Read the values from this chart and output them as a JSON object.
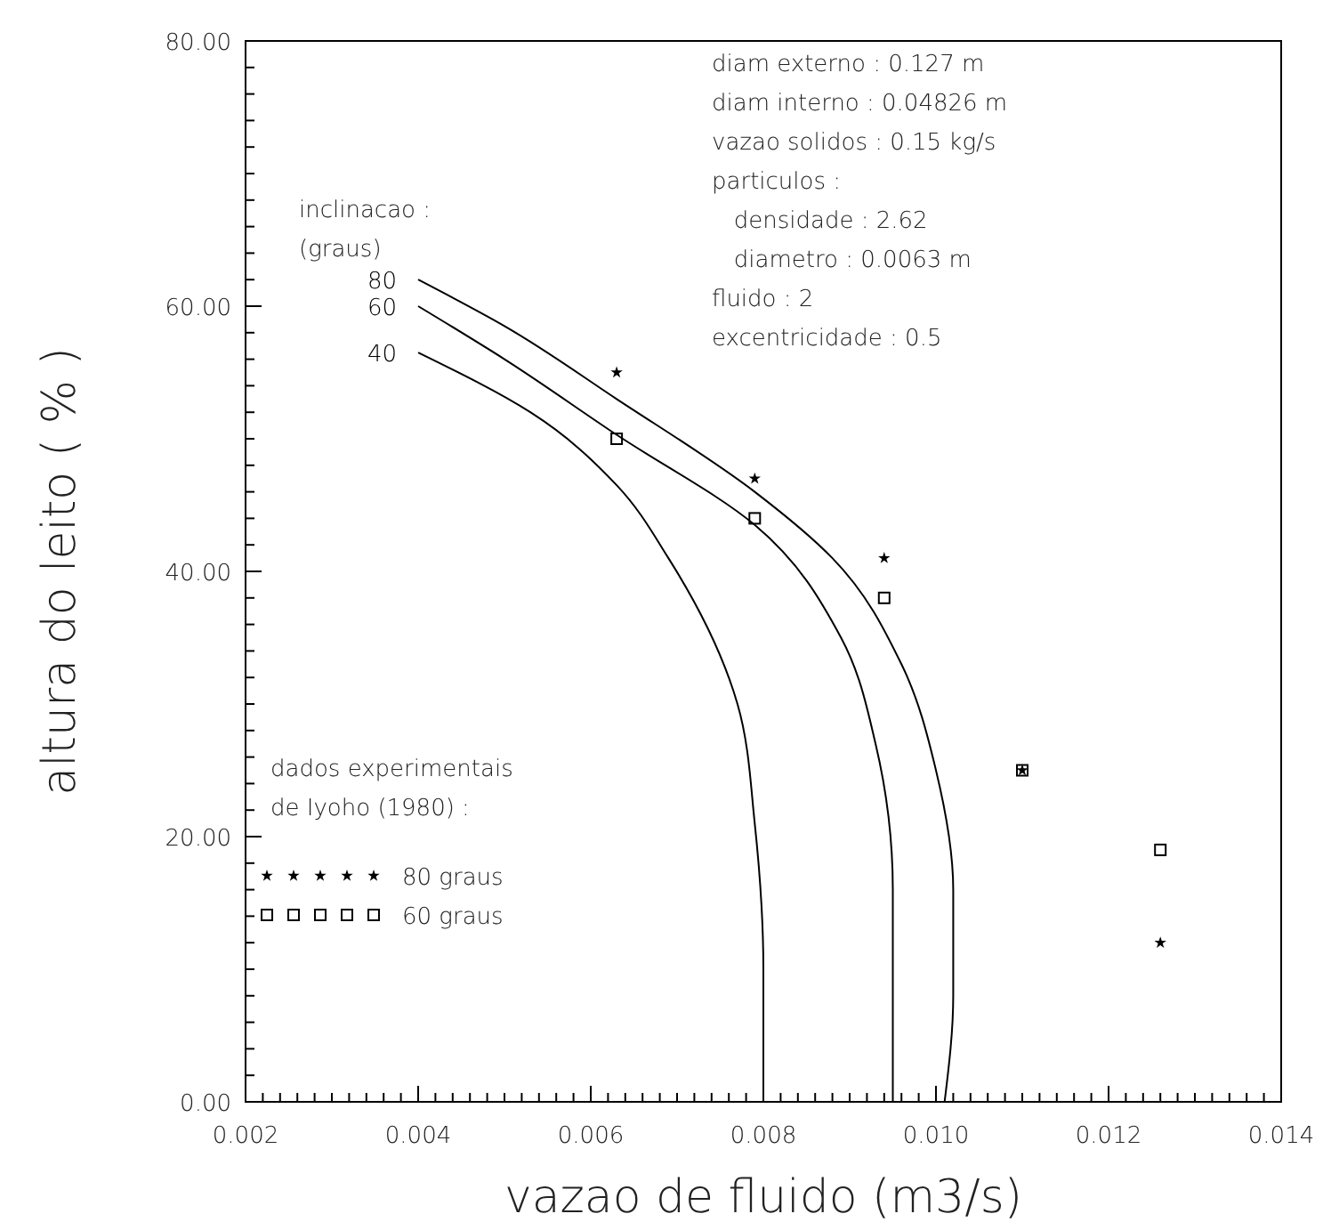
{
  "chart_data": {
    "type": "line",
    "xlabel": "vazao de fluido (m3/s)",
    "ylabel": "altura do leito ( % )",
    "xlim": [
      0.002,
      0.014
    ],
    "ylim": [
      0,
      80
    ],
    "xticks": [
      0.002,
      0.004,
      0.006,
      0.008,
      {
        "value": 0.01,
        "label": "0.010"
      },
      0.012,
      0.014,
      {
        "value": 0.0022,
        "label": null
      },
      {
        "value": 0.0024,
        "label": null
      },
      {
        "value": 0.0026,
        "label": null
      },
      {
        "value": 0.0028,
        "label": null
      },
      {
        "value": 0.003,
        "label": null
      },
      {
        "value": 0.0032,
        "label": null
      },
      {
        "value": 0.0034,
        "label": null
      },
      {
        "value": 0.0036,
        "label": null
      },
      {
        "value": 0.0038,
        "label": null
      },
      {
        "value": 0.0042,
        "label": null
      },
      {
        "value": 0.0044,
        "label": null
      },
      {
        "value": 0.0046,
        "label": null
      },
      {
        "value": 0.0048,
        "label": null
      },
      {
        "value": 0.005,
        "label": null
      },
      {
        "value": 0.0052,
        "label": null
      },
      {
        "value": 0.0054,
        "label": null
      },
      {
        "value": 0.0056,
        "label": null
      },
      {
        "value": 0.0058,
        "label": null
      },
      {
        "value": 0.0062,
        "label": null
      },
      {
        "value": 0.0064,
        "label": null
      },
      {
        "value": 0.0066,
        "label": null
      },
      {
        "value": 0.0068,
        "label": null
      },
      {
        "value": 0.007,
        "label": null
      },
      {
        "value": 0.0072,
        "label": null
      },
      {
        "value": 0.0074,
        "label": null
      },
      {
        "value": 0.0076,
        "label": null
      },
      {
        "value": 0.0078,
        "label": null
      },
      {
        "value": 0.0082,
        "label": null
      },
      {
        "value": 0.0084,
        "label": null
      },
      {
        "value": 0.0086,
        "label": null
      },
      {
        "value": 0.0088,
        "label": null
      },
      {
        "value": 0.009,
        "label": null
      },
      {
        "value": 0.0092,
        "label": null
      },
      {
        "value": 0.0094,
        "label": null
      },
      {
        "value": 0.0096,
        "label": null
      },
      {
        "value": 0.0098,
        "label": null
      },
      {
        "value": 0.0102,
        "label": null
      },
      {
        "value": 0.0104,
        "label": null
      },
      {
        "value": 0.0106,
        "label": null
      },
      {
        "value": 0.0108,
        "label": null
      },
      {
        "value": 0.011,
        "label": null
      },
      {
        "value": 0.0112,
        "label": null
      },
      {
        "value": 0.0114,
        "label": null
      },
      {
        "value": 0.0116,
        "label": null
      },
      {
        "value": 0.0118,
        "label": null
      },
      {
        "value": 0.0122,
        "label": null
      },
      {
        "value": 0.0124,
        "label": null
      },
      {
        "value": 0.0126,
        "label": null
      },
      {
        "value": 0.0128,
        "label": null
      },
      {
        "value": 0.013,
        "label": null
      },
      {
        "value": 0.0132,
        "label": null
      },
      {
        "value": 0.0134,
        "label": null
      },
      {
        "value": 0.0136,
        "label": null
      },
      {
        "value": 0.0138,
        "label": null
      }
    ],
    "yticks": [
      {
        "value": 0,
        "label": "0.00"
      },
      {
        "value": 20,
        "label": "20.00"
      },
      {
        "value": 40,
        "label": "40.00"
      },
      {
        "value": 60,
        "label": "60.00"
      },
      {
        "value": 80,
        "label": "80.00"
      },
      {
        "value": 2,
        "label": null
      },
      {
        "value": 4,
        "label": null
      },
      {
        "value": 6,
        "label": null
      },
      {
        "value": 8,
        "label": null
      },
      {
        "value": 10,
        "label": null
      },
      {
        "value": 12,
        "label": null
      },
      {
        "value": 14,
        "label": null
      },
      {
        "value": 16,
        "label": null
      },
      {
        "value": 18,
        "label": null
      },
      {
        "value": 22,
        "label": null
      },
      {
        "value": 24,
        "label": null
      },
      {
        "value": 26,
        "label": null
      },
      {
        "value": 28,
        "label": null
      },
      {
        "value": 30,
        "label": null
      },
      {
        "value": 32,
        "label": null
      },
      {
        "value": 34,
        "label": null
      },
      {
        "value": 36,
        "label": null
      },
      {
        "value": 38,
        "label": null
      },
      {
        "value": 42,
        "label": null
      },
      {
        "value": 44,
        "label": null
      },
      {
        "value": 46,
        "label": null
      },
      {
        "value": 48,
        "label": null
      },
      {
        "value": 50,
        "label": null
      },
      {
        "value": 52,
        "label": null
      },
      {
        "value": 54,
        "label": null
      },
      {
        "value": 56,
        "label": null
      },
      {
        "value": 58,
        "label": null
      },
      {
        "value": 62,
        "label": null
      },
      {
        "value": 64,
        "label": null
      },
      {
        "value": 66,
        "label": null
      },
      {
        "value": 68,
        "label": null
      },
      {
        "value": 70,
        "label": null
      },
      {
        "value": 72,
        "label": null
      },
      {
        "value": 74,
        "label": null
      },
      {
        "value": 76,
        "label": null
      },
      {
        "value": 78,
        "label": null
      }
    ],
    "grid": false,
    "legend": "left",
    "legend_title": "dados experimentais de Iyoho (1980) :",
    "annotations": [
      "inclinacao :",
      "(graus)",
      "diam externo : 0.127 m",
      "diam interno : 0.04826 m",
      "vazao solidos : 0.15 kg/s",
      "particulos :",
      "   densidade : 2.62",
      "   diametro : 0.0063 m",
      "fluido : 2",
      "excentricidade : 0.5"
    ],
    "series": [
      {
        "name": "80",
        "color": "#000000",
        "marker": "none",
        "x": [
          0.004,
          0.005,
          0.0063,
          0.0079,
          0.0088,
          0.0096,
          0.01,
          0.0102,
          0.0102,
          0.0101
        ],
        "values": [
          62,
          58.5,
          53,
          46,
          41,
          33,
          25,
          16,
          8,
          0
        ]
      },
      {
        "name": "60",
        "color": "#000000",
        "marker": "none",
        "x": [
          0.004,
          0.005,
          0.0063,
          0.0079,
          0.0089,
          0.0093,
          0.0095,
          0.0095,
          0.0095
        ],
        "values": [
          60,
          56,
          50.3,
          43.5,
          35,
          27,
          16,
          8,
          0
        ]
      },
      {
        "name": "40",
        "color": "#000000",
        "marker": "none",
        "x": [
          0.004,
          0.0053,
          0.0063,
          0.0069,
          0.0077,
          0.0079,
          0.008,
          0.008
        ],
        "values": [
          56.5,
          52,
          46.5,
          41,
          30,
          21,
          10,
          0
        ]
      },
      {
        "name": "80 graus",
        "type": "scatter",
        "color": "#000000",
        "marker": "star",
        "x": [
          0.0063,
          0.0079,
          0.0094,
          0.011,
          0.0126
        ],
        "values": [
          55,
          47,
          41,
          25,
          12
        ]
      },
      {
        "name": "60 graus",
        "type": "scatter",
        "color": "#000000",
        "marker": "square",
        "x": [
          0.0063,
          0.0079,
          0.0094,
          0.011,
          0.0126
        ],
        "values": [
          50,
          44,
          38,
          25,
          19
        ]
      }
    ]
  }
}
